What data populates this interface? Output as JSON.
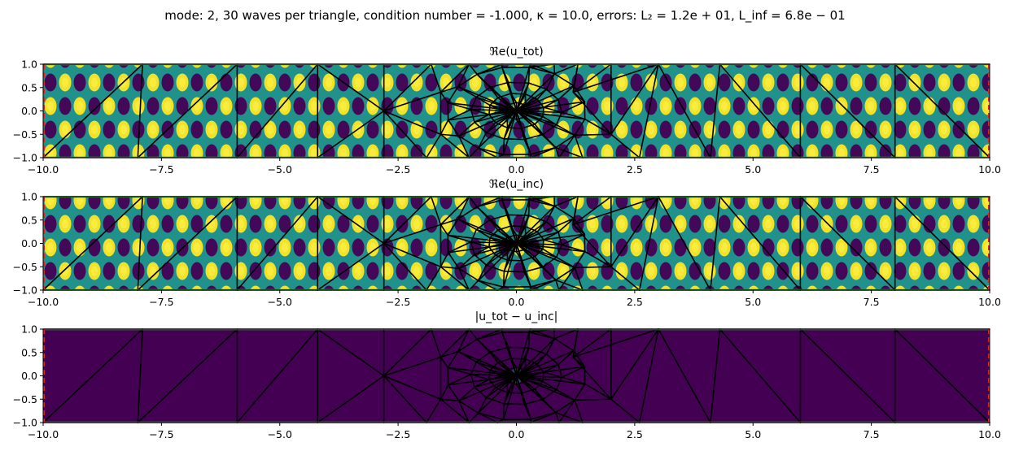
{
  "figure": {
    "suptitle": "mode: 2, 30 waves per triangle, condition number = -1.000, κ = 10.0, errors: L₂ = 1.2e + 01, L_inf = 6.8e − 01"
  },
  "colors": {
    "viridis_low": "#440154",
    "viridis_mid": "#21918c",
    "viridis_high": "#fde725",
    "mesh": "#000000",
    "boundary_top_bottom": "#2ca02c",
    "boundary_left_right": "#d62728"
  },
  "chart_data": [
    {
      "type": "heatmap",
      "title": "ℜe(u_tot)",
      "field": "real_part_wave",
      "x_ticks": [
        -10.0,
        -7.5,
        -5.0,
        -2.5,
        0.0,
        2.5,
        5.0,
        7.5,
        10.0
      ],
      "x_tick_labels": [
        "−10.0",
        "−7.5",
        "−5.0",
        "−2.5",
        "0.0",
        "2.5",
        "5.0",
        "7.5",
        "10.0"
      ],
      "y_ticks": [
        -1.0,
        -0.5,
        0.0,
        0.5,
        1.0
      ],
      "y_tick_labels": [
        "−1.0",
        "−0.5",
        "0.0",
        "0.5",
        "1.0"
      ],
      "xlim": [
        -10,
        10
      ],
      "ylim": [
        -1,
        1
      ],
      "colormap": "viridis",
      "overlay": "triangular mesh"
    },
    {
      "type": "heatmap",
      "title": "ℜe(u_inc)",
      "field": "real_part_wave",
      "x_ticks": [
        -10.0,
        -7.5,
        -5.0,
        -2.5,
        0.0,
        2.5,
        5.0,
        7.5,
        10.0
      ],
      "x_tick_labels": [
        "−10.0",
        "−7.5",
        "−5.0",
        "−2.5",
        "0.0",
        "2.5",
        "5.0",
        "7.5",
        "10.0"
      ],
      "y_ticks": [
        -1.0,
        -0.5,
        0.0,
        0.5,
        1.0
      ],
      "y_tick_labels": [
        "−1.0",
        "−0.5",
        "0.0",
        "0.5",
        "1.0"
      ],
      "xlim": [
        -10,
        10
      ],
      "ylim": [
        -1,
        1
      ],
      "colormap": "viridis",
      "overlay": "triangular mesh"
    },
    {
      "type": "heatmap",
      "title": "|u_tot − u_inc|",
      "field": "near_zero_error",
      "x_ticks": [
        -10.0,
        -7.5,
        -5.0,
        -2.5,
        0.0,
        2.5,
        5.0,
        7.5,
        10.0
      ],
      "x_tick_labels": [
        "−10.0",
        "−7.5",
        "−5.0",
        "−2.5",
        "0.0",
        "2.5",
        "5.0",
        "7.5",
        "10.0"
      ],
      "y_ticks": [
        -1.0,
        -0.5,
        0.0,
        0.5,
        1.0
      ],
      "y_tick_labels": [
        "−1.0",
        "−0.5",
        "0.0",
        "0.5",
        "1.0"
      ],
      "xlim": [
        -10,
        10
      ],
      "ylim": [
        -1,
        1
      ],
      "colormap": "viridis",
      "overlay": "triangular mesh"
    }
  ]
}
